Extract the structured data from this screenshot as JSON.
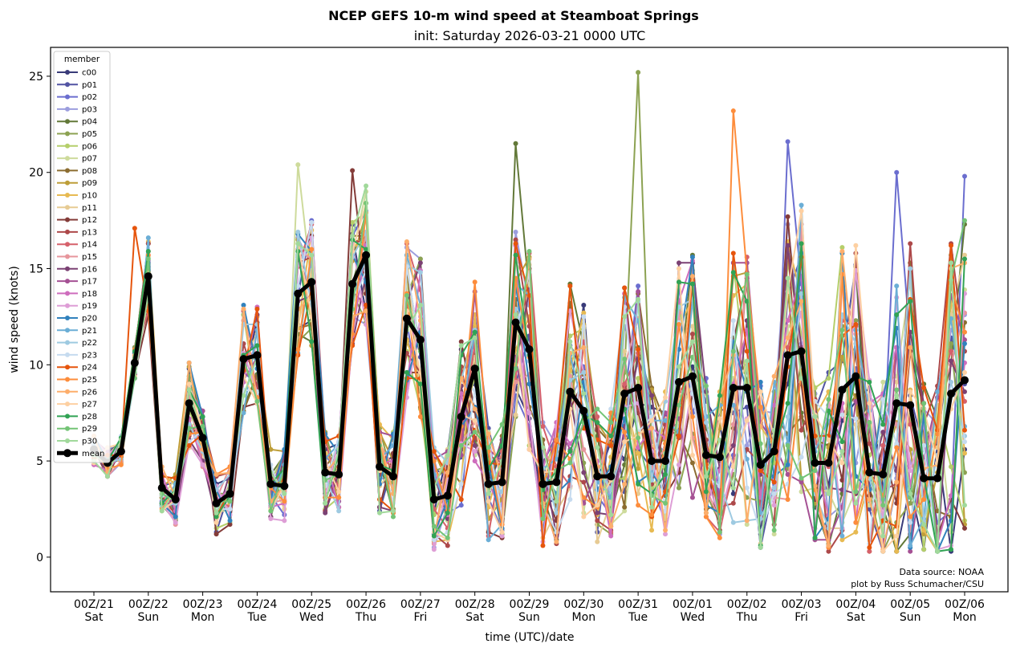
{
  "chart_data": {
    "type": "line",
    "title": "NCEP GEFS 10-m wind speed at Steamboat Springs",
    "subtitle": "init: Saturday 2026-03-21 0000 UTC",
    "xlabel": "time (UTC)/date",
    "ylabel": "wind speed (knots)",
    "ylim": [
      -1.8,
      26.5
    ],
    "yticks": [
      0,
      5,
      10,
      15,
      20,
      25
    ],
    "x_step_hours": 6,
    "x_start": "2026-03-21 00Z",
    "x_end": "2026-04-06 00Z",
    "xticks": [
      {
        "top": "00Z/21",
        "bottom": "Sat"
      },
      {
        "top": "00Z/22",
        "bottom": "Sun"
      },
      {
        "top": "00Z/23",
        "bottom": "Mon"
      },
      {
        "top": "00Z/24",
        "bottom": "Tue"
      },
      {
        "top": "00Z/25",
        "bottom": "Wed"
      },
      {
        "top": "00Z/26",
        "bottom": "Thu"
      },
      {
        "top": "00Z/27",
        "bottom": "Fri"
      },
      {
        "top": "00Z/28",
        "bottom": "Sat"
      },
      {
        "top": "00Z/29",
        "bottom": "Sun"
      },
      {
        "top": "00Z/30",
        "bottom": "Mon"
      },
      {
        "top": "00Z/31",
        "bottom": "Tue"
      },
      {
        "top": "00Z/01",
        "bottom": "Wed"
      },
      {
        "top": "00Z/02",
        "bottom": "Thu"
      },
      {
        "top": "00Z/03",
        "bottom": "Fri"
      },
      {
        "top": "00Z/04",
        "bottom": "Sat"
      },
      {
        "top": "00Z/05",
        "bottom": "Sun"
      },
      {
        "top": "00Z/06",
        "bottom": "Mon"
      }
    ],
    "grid": false,
    "legend": {
      "title": "member",
      "placement": "top-left"
    },
    "mean": {
      "name": "mean",
      "color": "#000000",
      "values": [
        5.6,
        4.9,
        5.5,
        10.1,
        14.6,
        3.6,
        3.0,
        8.0,
        6.2,
        2.8,
        3.3,
        10.3,
        10.5,
        3.8,
        3.7,
        13.7,
        14.3,
        4.4,
        4.3,
        14.2,
        15.7,
        4.7,
        4.2,
        12.4,
        11.3,
        3.0,
        3.2,
        7.3,
        9.8,
        3.8,
        3.9,
        12.2,
        10.8,
        3.8,
        3.9,
        8.6,
        7.6,
        4.2,
        4.2,
        8.5,
        8.8,
        5.0,
        5.0,
        9.1,
        9.4,
        5.3,
        5.2,
        8.8,
        8.8,
        4.8,
        5.5,
        10.5,
        10.7,
        4.9,
        4.9,
        8.7,
        9.4,
        4.4,
        4.3,
        8.0,
        7.9,
        4.1,
        4.1,
        8.5,
        9.2
      ]
    },
    "members": [
      {
        "name": "c00",
        "color": "#393b79"
      },
      {
        "name": "p01",
        "color": "#5254a3"
      },
      {
        "name": "p02",
        "color": "#6b6ecf"
      },
      {
        "name": "p03",
        "color": "#9c9ede"
      },
      {
        "name": "p04",
        "color": "#637939"
      },
      {
        "name": "p05",
        "color": "#8ca252"
      },
      {
        "name": "p06",
        "color": "#b5cf6b"
      },
      {
        "name": "p07",
        "color": "#cedb9c"
      },
      {
        "name": "p08",
        "color": "#8c6d31"
      },
      {
        "name": "p09",
        "color": "#bd9e39"
      },
      {
        "name": "p10",
        "color": "#e7ba52"
      },
      {
        "name": "p11",
        "color": "#e7cb94"
      },
      {
        "name": "p12",
        "color": "#843c39"
      },
      {
        "name": "p13",
        "color": "#ad494a"
      },
      {
        "name": "p14",
        "color": "#d6616b"
      },
      {
        "name": "p15",
        "color": "#e7969c"
      },
      {
        "name": "p16",
        "color": "#7b4173"
      },
      {
        "name": "p17",
        "color": "#a55194"
      },
      {
        "name": "p18",
        "color": "#ce6dbd"
      },
      {
        "name": "p19",
        "color": "#de9ed6"
      },
      {
        "name": "p20",
        "color": "#3182bd"
      },
      {
        "name": "p21",
        "color": "#6baed6"
      },
      {
        "name": "p22",
        "color": "#9ecae1"
      },
      {
        "name": "p23",
        "color": "#c6dbef"
      },
      {
        "name": "p24",
        "color": "#e6550d"
      },
      {
        "name": "p25",
        "color": "#fd8d3c"
      },
      {
        "name": "p26",
        "color": "#fdae6b"
      },
      {
        "name": "p27",
        "color": "#fdd0a2"
      },
      {
        "name": "p28",
        "color": "#31a354"
      },
      {
        "name": "p29",
        "color": "#74c476"
      },
      {
        "name": "p30",
        "color": "#a1d99b"
      }
    ],
    "notable_member_values": [
      {
        "member": "p05",
        "time": "00Z/31",
        "value": 25.2
      },
      {
        "member": "p25",
        "time": "18Z/01",
        "value": 23.2
      },
      {
        "member": "p02",
        "time": "18Z/02",
        "value": 21.6
      },
      {
        "member": "p04",
        "time": "18Z/28",
        "value": 21.5
      },
      {
        "member": "p07",
        "time": "18Z/24",
        "value": 20.4
      },
      {
        "member": "p12",
        "time": "18Z/25",
        "value": 20.1
      },
      {
        "member": "p02",
        "time": "18Z/04",
        "value": 20.0
      },
      {
        "member": "p02",
        "time": "00Z/06",
        "value": 19.8
      },
      {
        "member": "p24",
        "time": "18Z/21",
        "value": 17.1
      }
    ],
    "annotations": [
      "Data source: NOAA",
      "plot by Russ Schumacher/CSU"
    ]
  }
}
